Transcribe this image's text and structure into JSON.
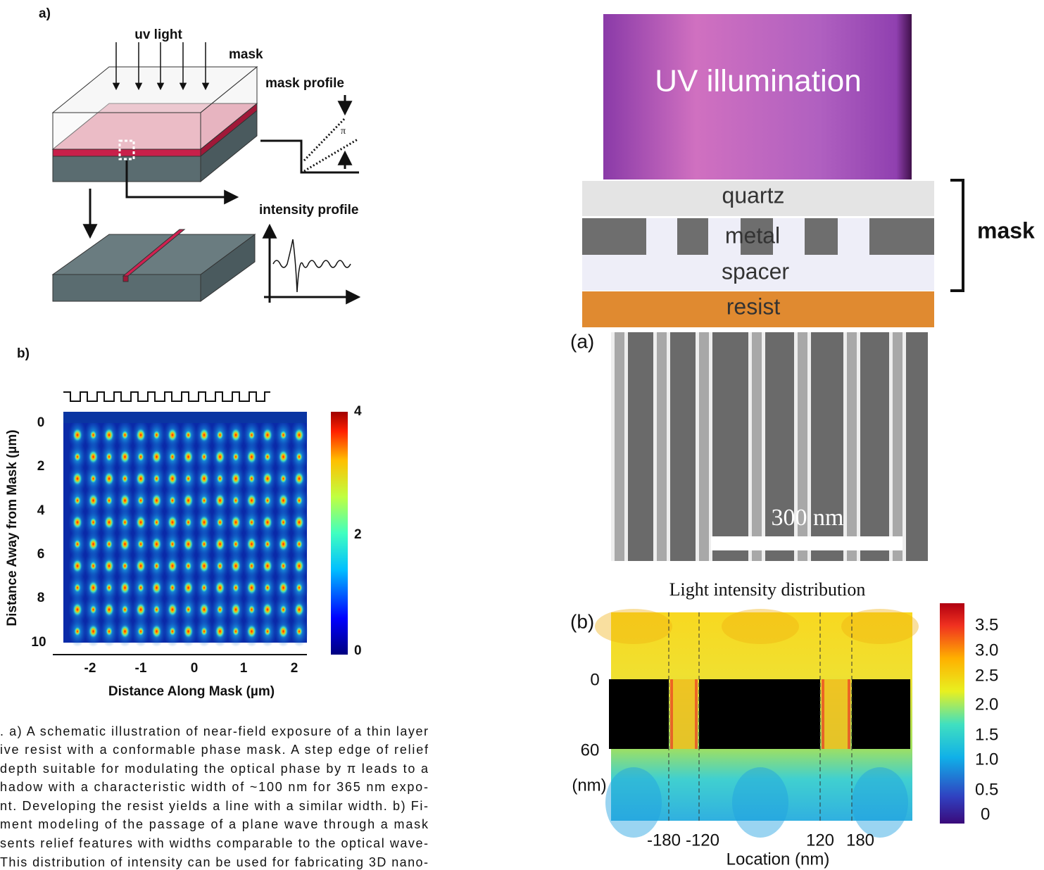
{
  "left_figure": {
    "panel_a": {
      "label": "a)",
      "uv_light": "uv light",
      "mask": "mask",
      "mask_profile": "mask profile",
      "pi": "π",
      "intensity_profile": "intensity profile"
    },
    "panel_b": {
      "label": "b)",
      "y_axis_label": "Distance Away from Mask (µm)",
      "y_ticks": [
        "0",
        "2",
        "4",
        "6",
        "8",
        "10"
      ],
      "x_axis_label": "Distance Along Mask (µm)",
      "x_ticks": [
        "-2",
        "-1",
        "0",
        "1",
        "2"
      ],
      "colorbar_ticks": [
        "4",
        "2",
        "0"
      ]
    },
    "caption": [
      ". a) A schematic illustration of near-field exposure of a thin layer",
      "ive resist with a conformable phase mask. A step edge of relief",
      "depth suitable for modulating the optical phase by π leads to a",
      "hadow with a characteristic width of ~100 nm for 365 nm expo-",
      "nt. Developing the resist yields a line with a similar width. b) Fi-",
      "ment modeling of the passage of a plane wave through a mask",
      "sents relief features with widths comparable to the optical wave-",
      "This distribution of intensity can be used for fabricating 3D nano-"
    ]
  },
  "right_figure": {
    "schematic": {
      "uv_illumination": "UV illumination",
      "quartz": "quartz",
      "metal": "metal",
      "spacer": "spacer",
      "resist": "resist",
      "mask": "mask"
    },
    "panel_a": {
      "label": "(a)",
      "scale_bar": "300 nm"
    },
    "panel_b": {
      "title": "Light intensity distribution",
      "label": "(b)",
      "y_ticks": [
        "0",
        "60"
      ],
      "y_unit": "(nm)",
      "x_ticks": [
        "-180",
        "-120",
        "120",
        "180"
      ],
      "x_axis_label": "Location (nm)",
      "colorbar_ticks": [
        "3.5",
        "3.0",
        "2.5",
        "2.0",
        "1.5",
        "1.0",
        "0.5",
        "0"
      ]
    }
  }
}
